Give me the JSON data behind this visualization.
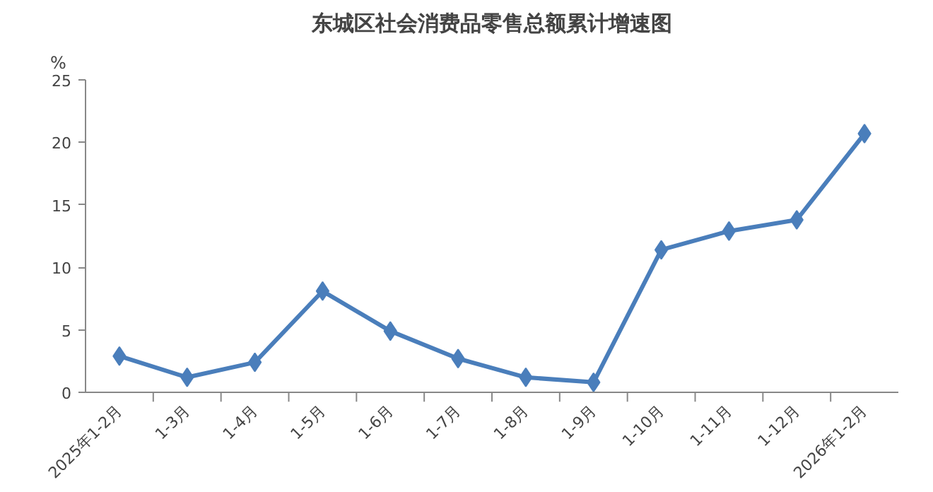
{
  "chart_data": {
    "type": "line",
    "title": "东城区社会消费品零售总额累计增速图",
    "ylabel": "%",
    "categories": [
      "2025年1-2月",
      "1-3月",
      "1-4月",
      "1-5月",
      "1-6月",
      "1-7月",
      "1-8月",
      "1-9月",
      "1-10月",
      "1-11月",
      "1-12月",
      "2026年1-2月"
    ],
    "series": [
      {
        "color": "#4a7ebb",
        "values": [
          2.9,
          1.2,
          2.4,
          8.1,
          4.9,
          2.7,
          1.2,
          0.8,
          11.4,
          12.9,
          13.8,
          20.7
        ]
      }
    ],
    "ylim": [
      0,
      25
    ],
    "yticks": [
      0,
      5,
      10,
      15,
      20,
      25
    ],
    "grid": false,
    "marker": "diamond",
    "line_style": "solid"
  }
}
